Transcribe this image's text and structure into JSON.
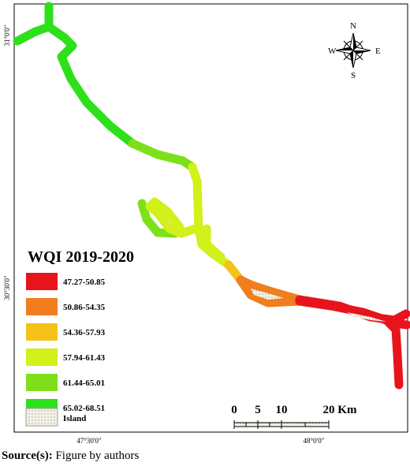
{
  "map": {
    "latitude_labels": [
      "31°0'0\"",
      "30°30'0\""
    ],
    "longitude_labels": [
      "47°30'0\"",
      "48°0'0\""
    ],
    "compass": {
      "n": "N",
      "s": "S",
      "e": "E",
      "w": "W"
    },
    "legend": {
      "title": "WQI 2019-2020",
      "items": [
        {
          "label": "47.27-50.85",
          "color": "#e8141b"
        },
        {
          "label": "50.86-54.35",
          "color": "#f07d1e"
        },
        {
          "label": "54.36-57.93",
          "color": "#f5c21a"
        },
        {
          "label": "57.94-61.43",
          "color": "#d2f01a"
        },
        {
          "label": "61.44-65.01",
          "color": "#7ee01a"
        },
        {
          "label": "65.02-68.51",
          "color": "#2ee01a"
        }
      ],
      "island": "Island"
    },
    "scale_bar": [
      "0",
      "5",
      "10",
      "20 Km"
    ]
  },
  "source": {
    "label": "Source(s):",
    "text": "Figure by authors"
  }
}
